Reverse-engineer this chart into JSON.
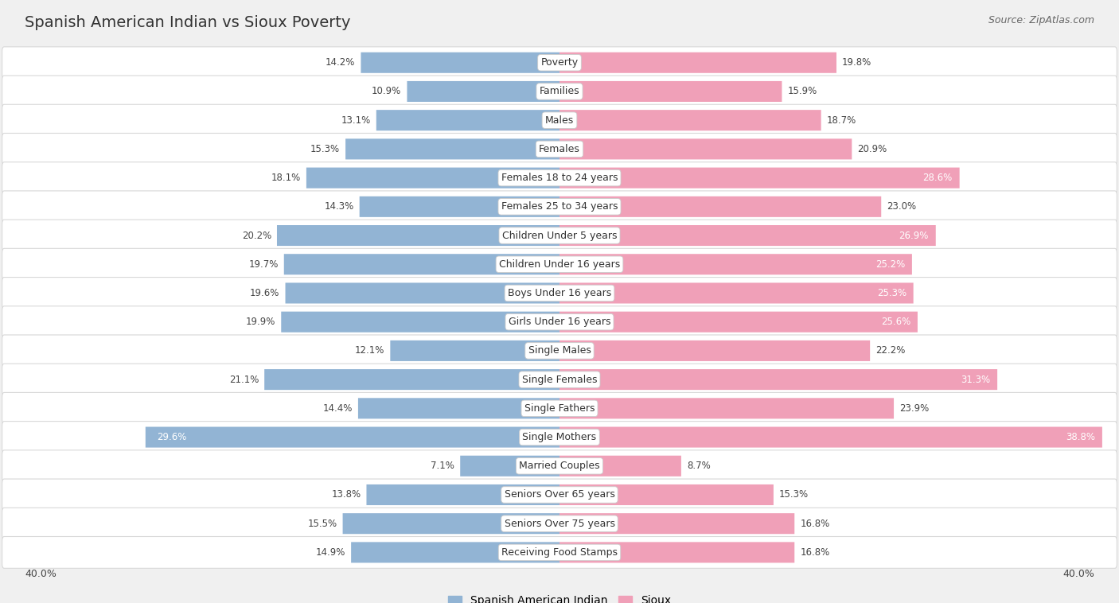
{
  "title": "Spanish American Indian vs Sioux Poverty",
  "source": "Source: ZipAtlas.com",
  "categories": [
    "Poverty",
    "Families",
    "Males",
    "Females",
    "Females 18 to 24 years",
    "Females 25 to 34 years",
    "Children Under 5 years",
    "Children Under 16 years",
    "Boys Under 16 years",
    "Girls Under 16 years",
    "Single Males",
    "Single Females",
    "Single Fathers",
    "Single Mothers",
    "Married Couples",
    "Seniors Over 65 years",
    "Seniors Over 75 years",
    "Receiving Food Stamps"
  ],
  "spanish_values": [
    14.2,
    10.9,
    13.1,
    15.3,
    18.1,
    14.3,
    20.2,
    19.7,
    19.6,
    19.9,
    12.1,
    21.1,
    14.4,
    29.6,
    7.1,
    13.8,
    15.5,
    14.9
  ],
  "sioux_values": [
    19.8,
    15.9,
    18.7,
    20.9,
    28.6,
    23.0,
    26.9,
    25.2,
    25.3,
    25.6,
    22.2,
    31.3,
    23.9,
    38.8,
    8.7,
    15.3,
    16.8,
    16.8
  ],
  "spanish_color": "#92b4d4",
  "sioux_color": "#f0a0b8",
  "spanish_label": "Spanish American Indian",
  "sioux_label": "Sioux",
  "axis_max": 40.0,
  "bg_color": "#f0f0f0",
  "bar_bg": "#ffffff",
  "label_fontsize": 9.0,
  "value_fontsize": 8.5,
  "title_fontsize": 14,
  "source_fontsize": 9
}
